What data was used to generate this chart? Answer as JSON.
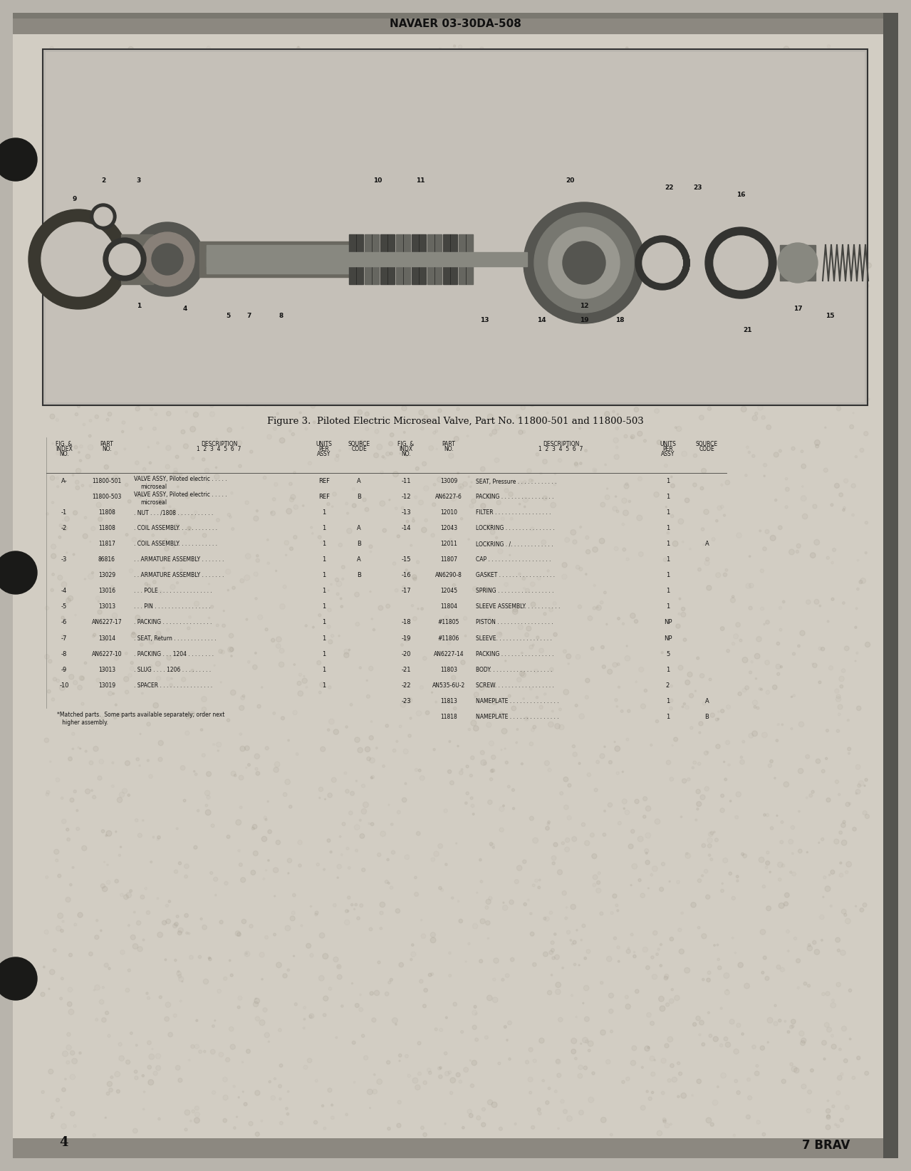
{
  "header": "NAVAER 03-30DA-508",
  "figure_caption": "Figure 3.  Piloted Electric Microseal Valve, Part No. 11800-501 and 11800-503",
  "page_number": "4",
  "stamp": "7 BRAV",
  "page_bg": "#b8b4ac",
  "content_bg": "#d4cfc5",
  "diagram_bg": "#c8c3b8",
  "table_bg": "#ccc8bc",
  "dark_bar_color": "#7a7870",
  "text_color": "#111111",
  "border_color": "#444444",
  "left_parts": [
    [
      "A-",
      "11800-501",
      "VALVE ASSY, Piloted electric . . . . .",
      "microseal",
      "REF",
      "A"
    ],
    [
      "",
      "11800-503",
      "VALVE ASSY, Piloted electric . . . . .",
      "microseal",
      "REF",
      "B"
    ],
    [
      "-1",
      "11808",
      ". NUT . . . /1808 . . . . . . . . . . .",
      "",
      "1",
      ""
    ],
    [
      "-2",
      "11808",
      ". COIL ASSEMBLY. . . . . . . . . . . .",
      "",
      "1",
      "A"
    ],
    [
      "",
      "11817",
      ". COIL ASSEMBLY. . . . . . . . . . . .",
      "",
      "1",
      "B"
    ],
    [
      "-3",
      "86816",
      ". . ARMATURE ASSEMBLY . . . . . . .",
      "",
      "1",
      "A"
    ],
    [
      "",
      "13029",
      ". . ARMATURE ASSEMBLY . . . . . . .",
      "",
      "1",
      "B"
    ],
    [
      "-4",
      "13016",
      ". . . POLE . . . . . . . . . . . . . . . .",
      "",
      "1",
      ""
    ],
    [
      "-5",
      "13013",
      ". . . PIN . . . . . . . . . . . . . . . . .",
      "",
      "1",
      ""
    ],
    [
      "-6",
      "AN6227-17",
      ". PACKING . . . . . . . . . . . . . . .",
      "",
      "1",
      ""
    ],
    [
      "-7",
      "13014",
      ". SEAT, Return . . . . . . . . . . . . .",
      "",
      "1",
      ""
    ],
    [
      "-8",
      "AN6227-10",
      ". PACKING . . . 1204 . . . . . . . .",
      "",
      "1",
      ""
    ],
    [
      "-9",
      "13013",
      ". SLUG . . . . 1206 . . . . . . . . .",
      "",
      "1",
      ""
    ],
    [
      "-10",
      "13019",
      ". SPACER . . . . . . . . . . . . . . . .",
      "",
      "1",
      ""
    ]
  ],
  "right_parts": [
    [
      "-11",
      "13009",
      "SEAT, Pressure . . . . . . . . . . . .",
      "1",
      ""
    ],
    [
      "-12",
      "AN6227-6",
      "PACKING . . . . . . . . . . . . . . . .",
      "1",
      ""
    ],
    [
      "-13",
      "12010",
      "FILTER . . . . . . . . . . . . . . . . .",
      "1",
      ""
    ],
    [
      "-14",
      "12043",
      "LOCKRING . . . . . . . . . . . . . . . ",
      "1",
      ""
    ],
    [
      "",
      "12011",
      "LOCKRING . /. . . . . . . . . . . . . ",
      "1",
      "A"
    ],
    [
      "-15",
      "11807",
      "CAP . . . . . . . . . . . . . . . . . . .",
      "1",
      ""
    ],
    [
      "-16",
      "AN6290-8",
      "GASKET . . . . . . . . . . . . . . . . .",
      "1",
      ""
    ],
    [
      "-17",
      "12045",
      "SPRING . . . . . . . . . . . . . . . . .",
      "1",
      ""
    ],
    [
      "",
      "11804",
      "SLEEVE ASSEMBLY. . . . . . . . . . .",
      "1",
      ""
    ],
    [
      "-18",
      "#11805",
      "PISTON . . . . . . . . . . . . . . . . .",
      "NP",
      ""
    ],
    [
      "-19",
      "#11806",
      "SLEEVE. . . . . . . . . . . . . . . . . ",
      "NP",
      ""
    ],
    [
      "-20",
      "AN6227-14",
      "PACKING . . . . . . . . . . . . . . . .",
      "5",
      ""
    ],
    [
      "-21",
      "11803",
      "BODY. . . . . . . . . . . . . . . . . . .",
      "1",
      ""
    ],
    [
      "-22",
      "AN535-6U-2",
      "SCREW. . . . . . . . . . . . . . . . . .",
      "2",
      ""
    ],
    [
      "-23",
      "11813",
      "NAMEPLATE . . . . . . . . . . . . . . .",
      "1",
      "A"
    ],
    [
      "",
      "11818",
      "NAMEPLATE . . . . . . . . . . . . . . .",
      "1",
      "B"
    ]
  ],
  "footnote_line1": "*Matched parts.  Some parts available separately; order next",
  "footnote_line2": "   higher assembly."
}
